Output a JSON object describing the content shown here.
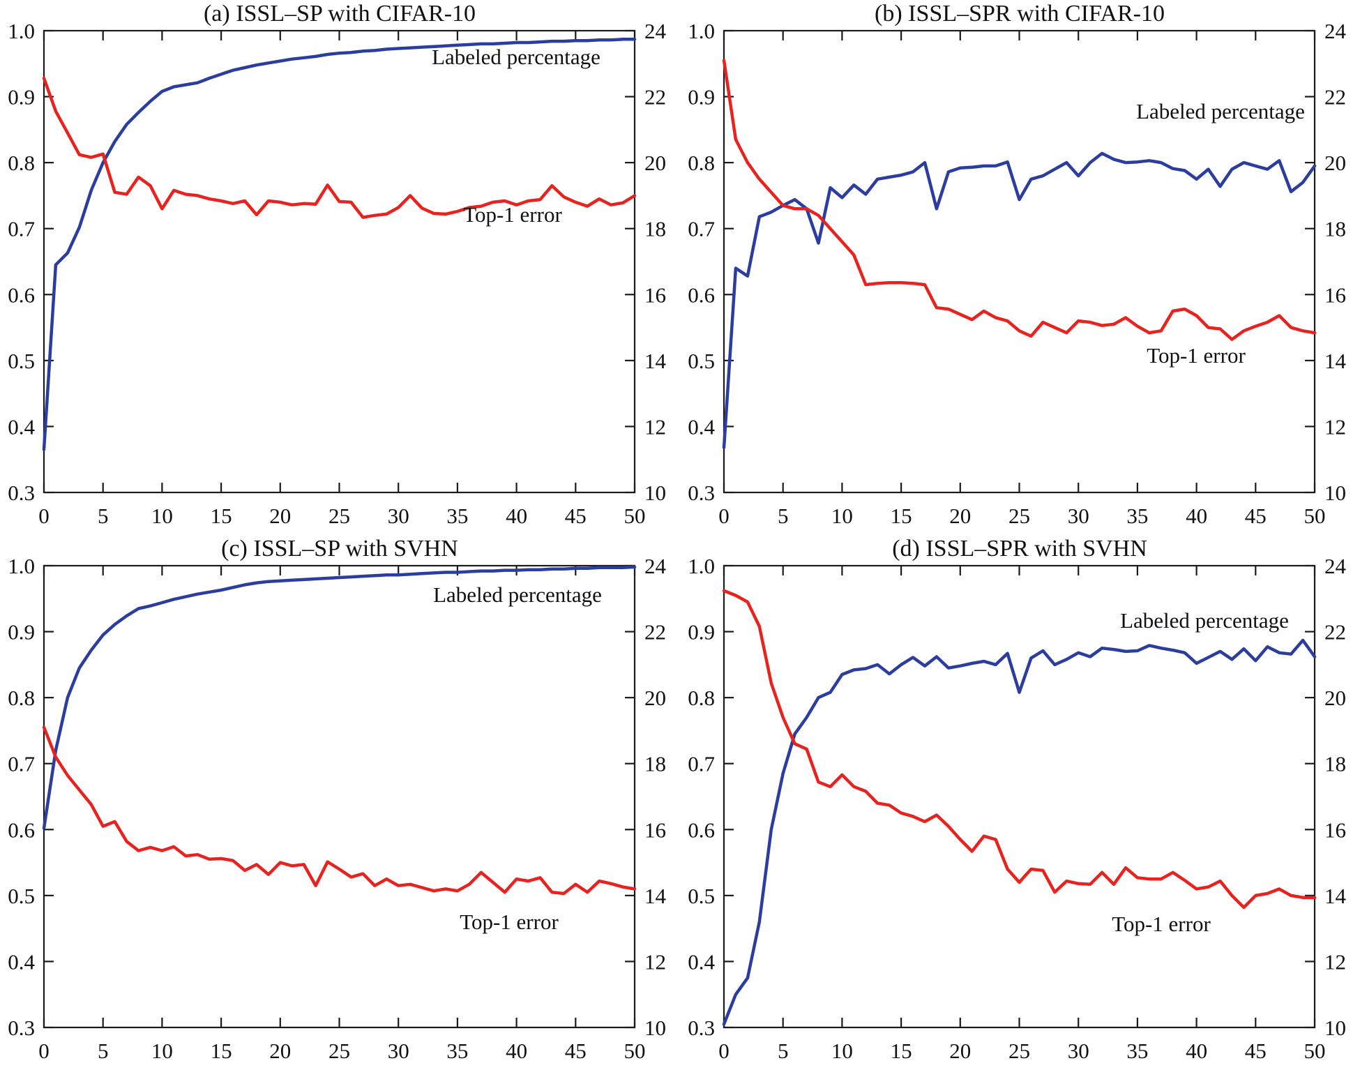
{
  "figure": {
    "background": "#ffffff",
    "text_color": "#111111",
    "axis_color": "#1a1a1a",
    "series_colors": {
      "labeled_percentage": "#2c3da0",
      "top1_error": "#e8231f"
    },
    "legend_style": "in-plot text labels",
    "grid": false
  },
  "chart_data": [
    {
      "type": "line",
      "title": "(a) ISSL–SP with CIFAR-10",
      "x_axis": {
        "min": 0,
        "max": 50,
        "tick_labels": [
          "0",
          "5",
          "10",
          "15",
          "20",
          "25",
          "30",
          "35",
          "40",
          "45",
          "50"
        ]
      },
      "left_axis": {
        "min": 0.3,
        "max": 1.0,
        "tick_labels": [
          "1.0",
          "0.9",
          "0.8",
          "0.7",
          "0.6",
          "0.5",
          "0.4",
          "0.3"
        ]
      },
      "right_axis": {
        "min": 10,
        "max": 24,
        "tick_labels": [
          "24",
          "22",
          "20",
          "18",
          "16",
          "14",
          "12",
          "10"
        ]
      },
      "x_start": 0,
      "x_step": 1,
      "series": [
        {
          "name": "Labeled percentage",
          "axis": "left",
          "color_key": "labeled_percentage",
          "values": [
            0.365,
            0.645,
            0.663,
            0.702,
            0.758,
            0.8,
            0.832,
            0.858,
            0.876,
            0.893,
            0.908,
            0.915,
            0.918,
            0.921,
            0.928,
            0.934,
            0.94,
            0.944,
            0.948,
            0.951,
            0.954,
            0.957,
            0.959,
            0.961,
            0.964,
            0.966,
            0.967,
            0.969,
            0.97,
            0.972,
            0.973,
            0.974,
            0.975,
            0.976,
            0.977,
            0.978,
            0.979,
            0.98,
            0.98,
            0.981,
            0.982,
            0.982,
            0.983,
            0.984,
            0.984,
            0.985,
            0.985,
            0.986,
            0.986,
            0.987,
            0.987
          ]
        },
        {
          "name": "Top-1 error",
          "axis": "right",
          "color_key": "top1_error",
          "values": [
            22.56,
            21.56,
            20.9,
            20.24,
            20.16,
            20.26,
            19.1,
            19.04,
            19.56,
            19.3,
            18.6,
            19.16,
            19.04,
            19.0,
            18.9,
            18.84,
            18.76,
            18.84,
            18.42,
            18.84,
            18.8,
            18.72,
            18.76,
            18.74,
            19.32,
            18.82,
            18.8,
            18.34,
            18.4,
            18.44,
            18.64,
            19.0,
            18.62,
            18.46,
            18.44,
            18.52,
            18.64,
            18.68,
            18.8,
            18.84,
            18.72,
            18.84,
            18.88,
            19.3,
            18.96,
            18.8,
            18.68,
            18.9,
            18.72,
            18.78,
            19.0
          ]
        }
      ]
    },
    {
      "type": "line",
      "title": "(b) ISSL–SPR with CIFAR-10",
      "x_axis": {
        "min": 0,
        "max": 50,
        "tick_labels": [
          "0",
          "5",
          "10",
          "15",
          "20",
          "25",
          "30",
          "35",
          "40",
          "45",
          "50"
        ]
      },
      "left_axis": {
        "min": 0.3,
        "max": 1.0,
        "tick_labels": [
          "1.0",
          "0.9",
          "0.8",
          "0.7",
          "0.6",
          "0.5",
          "0.4",
          "0.3"
        ]
      },
      "right_axis": {
        "min": 10,
        "max": 24,
        "tick_labels": [
          "24",
          "22",
          "20",
          "18",
          "16",
          "14",
          "12",
          "10"
        ]
      },
      "x_start": 0,
      "x_step": 1,
      "series": [
        {
          "name": "Labeled percentage",
          "axis": "left",
          "color_key": "labeled_percentage",
          "values": [
            0.368,
            0.64,
            0.628,
            0.718,
            0.725,
            0.735,
            0.744,
            0.73,
            0.678,
            0.762,
            0.747,
            0.766,
            0.752,
            0.775,
            0.778,
            0.781,
            0.786,
            0.8,
            0.73,
            0.786,
            0.792,
            0.793,
            0.795,
            0.795,
            0.801,
            0.744,
            0.775,
            0.78,
            0.79,
            0.8,
            0.78,
            0.8,
            0.814,
            0.805,
            0.8,
            0.801,
            0.803,
            0.8,
            0.791,
            0.788,
            0.775,
            0.79,
            0.764,
            0.79,
            0.8,
            0.795,
            0.79,
            0.803,
            0.756,
            0.77,
            0.795
          ]
        },
        {
          "name": "Top-1 error",
          "axis": "right",
          "color_key": "top1_error",
          "values": [
            23.1,
            20.7,
            20.0,
            19.5,
            19.1,
            18.7,
            18.6,
            18.6,
            18.4,
            18.0,
            17.6,
            17.2,
            16.3,
            16.34,
            16.36,
            16.36,
            16.34,
            16.3,
            15.6,
            15.56,
            15.4,
            15.24,
            15.5,
            15.3,
            15.2,
            14.9,
            14.74,
            15.16,
            15.0,
            14.84,
            15.2,
            15.16,
            15.06,
            15.1,
            15.3,
            15.04,
            14.84,
            14.9,
            15.5,
            15.56,
            15.36,
            15.0,
            14.96,
            14.64,
            14.9,
            15.04,
            15.16,
            15.36,
            15.0,
            14.9,
            14.84
          ]
        }
      ]
    },
    {
      "type": "line",
      "title": "(c) ISSL–SP with SVHN",
      "x_axis": {
        "min": 0,
        "max": 50,
        "tick_labels": [
          "0",
          "5",
          "10",
          "15",
          "20",
          "25",
          "30",
          "35",
          "40",
          "45",
          "50"
        ]
      },
      "left_axis": {
        "min": 0.3,
        "max": 1.0,
        "tick_labels": [
          "1.0",
          "0.9",
          "0.8",
          "0.7",
          "0.6",
          "0.5",
          "0.4",
          "0.3"
        ]
      },
      "right_axis": {
        "min": 10,
        "max": 24,
        "tick_labels": [
          "24",
          "22",
          "20",
          "18",
          "16",
          "14",
          "12",
          "10"
        ]
      },
      "x_start": 0,
      "x_step": 1,
      "series": [
        {
          "name": "Labeled percentage",
          "axis": "left",
          "color_key": "labeled_percentage",
          "values": [
            0.602,
            0.72,
            0.8,
            0.845,
            0.872,
            0.895,
            0.911,
            0.924,
            0.935,
            0.939,
            0.944,
            0.949,
            0.953,
            0.957,
            0.96,
            0.963,
            0.967,
            0.971,
            0.974,
            0.976,
            0.977,
            0.978,
            0.979,
            0.98,
            0.981,
            0.982,
            0.983,
            0.984,
            0.985,
            0.986,
            0.986,
            0.987,
            0.988,
            0.989,
            0.99,
            0.99,
            0.991,
            0.992,
            0.992,
            0.993,
            0.993,
            0.994,
            0.994,
            0.995,
            0.995,
            0.996,
            0.996,
            0.997,
            0.997,
            0.997,
            0.998
          ]
        },
        {
          "name": "Top-1 error",
          "axis": "right",
          "color_key": "top1_error",
          "values": [
            19.1,
            18.2,
            17.64,
            17.2,
            16.76,
            16.1,
            16.24,
            15.64,
            15.36,
            15.46,
            15.36,
            15.48,
            15.2,
            15.24,
            15.1,
            15.12,
            15.06,
            14.76,
            14.94,
            14.64,
            15.0,
            14.9,
            14.94,
            14.3,
            15.02,
            14.8,
            14.56,
            14.66,
            14.3,
            14.5,
            14.3,
            14.34,
            14.24,
            14.14,
            14.2,
            14.14,
            14.34,
            14.7,
            14.4,
            14.1,
            14.5,
            14.44,
            14.54,
            14.1,
            14.06,
            14.34,
            14.1,
            14.44,
            14.36,
            14.26,
            14.2
          ]
        }
      ]
    },
    {
      "type": "line",
      "title": "(d) ISSL–SPR with SVHN",
      "x_axis": {
        "min": 0,
        "max": 50,
        "tick_labels": [
          "0",
          "5",
          "10",
          "15",
          "20",
          "25",
          "30",
          "35",
          "40",
          "45",
          "50"
        ]
      },
      "left_axis": {
        "min": 0.3,
        "max": 1.0,
        "tick_labels": [
          "1.0",
          "0.9",
          "0.8",
          "0.7",
          "0.6",
          "0.5",
          "0.4",
          "0.3"
        ]
      },
      "right_axis": {
        "min": 10,
        "max": 24,
        "tick_labels": [
          "24",
          "22",
          "20",
          "18",
          "16",
          "14",
          "12",
          "10"
        ]
      },
      "x_start": 0,
      "x_step": 1,
      "series": [
        {
          "name": "Labeled percentage",
          "axis": "left",
          "color_key": "labeled_percentage",
          "values": [
            0.305,
            0.35,
            0.375,
            0.46,
            0.6,
            0.685,
            0.745,
            0.77,
            0.8,
            0.808,
            0.835,
            0.842,
            0.844,
            0.85,
            0.836,
            0.85,
            0.861,
            0.848,
            0.862,
            0.845,
            0.848,
            0.852,
            0.855,
            0.85,
            0.867,
            0.808,
            0.86,
            0.871,
            0.85,
            0.858,
            0.868,
            0.862,
            0.875,
            0.873,
            0.87,
            0.871,
            0.879,
            0.875,
            0.872,
            0.868,
            0.852,
            0.861,
            0.87,
            0.858,
            0.874,
            0.856,
            0.877,
            0.868,
            0.866,
            0.887,
            0.862
          ]
        },
        {
          "name": "Top-1 error",
          "axis": "right",
          "color_key": "top1_error",
          "values": [
            23.24,
            23.1,
            22.9,
            22.16,
            20.44,
            19.4,
            18.6,
            18.44,
            17.44,
            17.3,
            17.66,
            17.3,
            17.16,
            16.8,
            16.74,
            16.5,
            16.4,
            16.24,
            16.44,
            16.1,
            15.7,
            15.34,
            15.8,
            15.7,
            14.8,
            14.4,
            14.8,
            14.76,
            14.1,
            14.44,
            14.36,
            14.34,
            14.7,
            14.34,
            14.84,
            14.54,
            14.5,
            14.5,
            14.7,
            14.46,
            14.2,
            14.26,
            14.44,
            14.0,
            13.64,
            14.0,
            14.06,
            14.2,
            14.0,
            13.94,
            13.94
          ]
        }
      ]
    }
  ]
}
